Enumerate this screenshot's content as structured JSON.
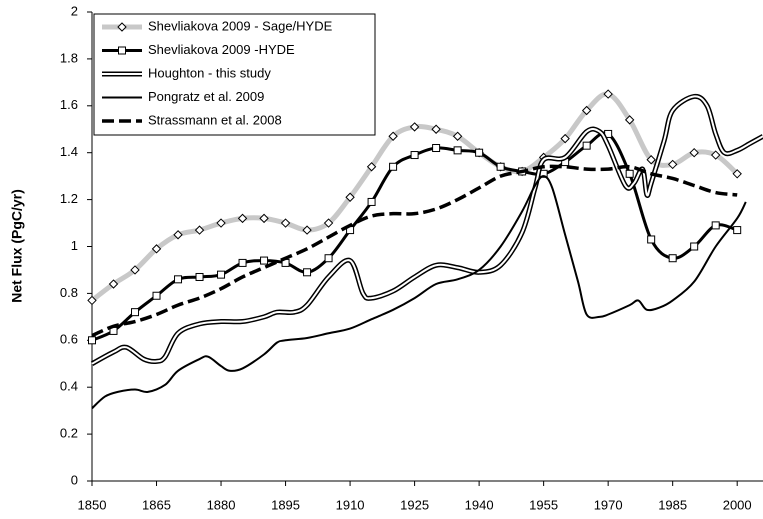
{
  "chart_data": {
    "type": "line",
    "ylabel": "Net Flux  (PgC/yr)",
    "xlim": [
      1850,
      2006
    ],
    "ylim": [
      0,
      2
    ],
    "xticks": [
      1850,
      1865,
      1880,
      1895,
      1910,
      1925,
      1940,
      1955,
      1970,
      1985,
      2000
    ],
    "yticks": [
      0,
      0.2,
      0.4,
      0.6,
      0.8,
      1,
      1.2,
      1.4,
      1.6,
      1.8,
      2
    ],
    "grid": false,
    "legend": "upper left",
    "series": [
      {
        "name": "Shevliakova 2009 - Sage/HYDE",
        "color": "#c8c8c8",
        "style": "solid",
        "width": 5,
        "marker": "diamond",
        "x": [
          1850,
          1855,
          1860,
          1865,
          1870,
          1875,
          1880,
          1885,
          1890,
          1895,
          1900,
          1905,
          1910,
          1915,
          1920,
          1925,
          1930,
          1935,
          1940,
          1945,
          1950,
          1955,
          1960,
          1965,
          1970,
          1975,
          1980,
          1985,
          1990,
          1995,
          2000
        ],
        "values": [
          0.77,
          0.84,
          0.9,
          0.99,
          1.05,
          1.07,
          1.1,
          1.12,
          1.12,
          1.1,
          1.07,
          1.1,
          1.21,
          1.34,
          1.47,
          1.51,
          1.5,
          1.47,
          1.4,
          1.34,
          1.32,
          1.38,
          1.46,
          1.58,
          1.65,
          1.54,
          1.37,
          1.35,
          1.4,
          1.39,
          1.31
        ]
      },
      {
        "name": "Shevliakova 2009 -HYDE",
        "color": "#000000",
        "style": "solid",
        "width": 3,
        "marker": "square",
        "x": [
          1850,
          1855,
          1860,
          1865,
          1870,
          1875,
          1880,
          1885,
          1890,
          1895,
          1900,
          1905,
          1910,
          1915,
          1920,
          1925,
          1930,
          1935,
          1940,
          1945,
          1950,
          1955,
          1960,
          1965,
          1970,
          1975,
          1980,
          1985,
          1990,
          1995,
          2000
        ],
        "values": [
          0.6,
          0.64,
          0.72,
          0.79,
          0.86,
          0.87,
          0.88,
          0.93,
          0.94,
          0.93,
          0.89,
          0.95,
          1.07,
          1.19,
          1.34,
          1.39,
          1.42,
          1.41,
          1.4,
          1.34,
          1.32,
          1.31,
          1.36,
          1.43,
          1.48,
          1.31,
          1.03,
          0.95,
          1.0,
          1.09,
          1.07
        ]
      },
      {
        "name": "Houghton - this study",
        "color": "#000000",
        "style": "double",
        "width": 5,
        "marker": "none",
        "x": [
          1850,
          1855,
          1858,
          1862,
          1865,
          1867,
          1870,
          1875,
          1880,
          1885,
          1890,
          1893,
          1897,
          1900,
          1905,
          1910,
          1913,
          1915,
          1920,
          1925,
          1930,
          1935,
          1940,
          1945,
          1950,
          1953,
          1955,
          1960,
          1965,
          1968,
          1970,
          1974,
          1976,
          1978,
          1979,
          1980,
          1983,
          1985,
          1990,
          1993,
          1995,
          1997,
          2000,
          2003,
          2006
        ],
        "values": [
          0.5,
          0.55,
          0.57,
          0.52,
          0.51,
          0.53,
          0.63,
          0.67,
          0.68,
          0.68,
          0.7,
          0.72,
          0.72,
          0.75,
          0.87,
          0.94,
          0.8,
          0.78,
          0.81,
          0.87,
          0.92,
          0.91,
          0.89,
          0.92,
          1.06,
          1.25,
          1.37,
          1.38,
          1.49,
          1.49,
          1.43,
          1.26,
          1.27,
          1.33,
          1.22,
          1.27,
          1.45,
          1.58,
          1.64,
          1.6,
          1.48,
          1.4,
          1.41,
          1.44,
          1.47
        ]
      },
      {
        "name": "Pongratz et al. 2009",
        "color": "#000000",
        "style": "solid",
        "width": 2,
        "marker": "none",
        "x": [
          1850,
          1853,
          1856,
          1860,
          1863,
          1867,
          1870,
          1875,
          1877,
          1880,
          1882,
          1885,
          1890,
          1893,
          1895,
          1900,
          1905,
          1910,
          1915,
          1920,
          1925,
          1930,
          1935,
          1940,
          1945,
          1950,
          1953,
          1955,
          1957,
          1960,
          1963,
          1965,
          1968,
          1970,
          1975,
          1977,
          1979,
          1982,
          1985,
          1990,
          1995,
          2000,
          2002
        ],
        "values": [
          0.31,
          0.36,
          0.38,
          0.39,
          0.38,
          0.41,
          0.47,
          0.52,
          0.53,
          0.49,
          0.47,
          0.48,
          0.54,
          0.59,
          0.6,
          0.61,
          0.63,
          0.65,
          0.69,
          0.73,
          0.78,
          0.84,
          0.86,
          0.9,
          1.0,
          1.15,
          1.26,
          1.3,
          1.25,
          1.05,
          0.85,
          0.71,
          0.7,
          0.71,
          0.75,
          0.77,
          0.73,
          0.74,
          0.77,
          0.85,
          1.0,
          1.12,
          1.19
        ]
      },
      {
        "name": "Strassmann et al. 2008",
        "color": "#000000",
        "style": "dashed",
        "width": 3.5,
        "marker": "none",
        "x": [
          1850,
          1855,
          1860,
          1865,
          1870,
          1875,
          1880,
          1885,
          1890,
          1895,
          1900,
          1905,
          1910,
          1915,
          1920,
          1925,
          1930,
          1935,
          1940,
          1945,
          1950,
          1955,
          1960,
          1965,
          1970,
          1975,
          1980,
          1985,
          1990,
          1995,
          2000
        ],
        "values": [
          0.62,
          0.66,
          0.68,
          0.71,
          0.75,
          0.78,
          0.82,
          0.87,
          0.91,
          0.95,
          0.99,
          1.04,
          1.09,
          1.13,
          1.14,
          1.14,
          1.16,
          1.2,
          1.25,
          1.3,
          1.32,
          1.34,
          1.34,
          1.33,
          1.33,
          1.34,
          1.31,
          1.29,
          1.26,
          1.23,
          1.22
        ]
      }
    ]
  }
}
